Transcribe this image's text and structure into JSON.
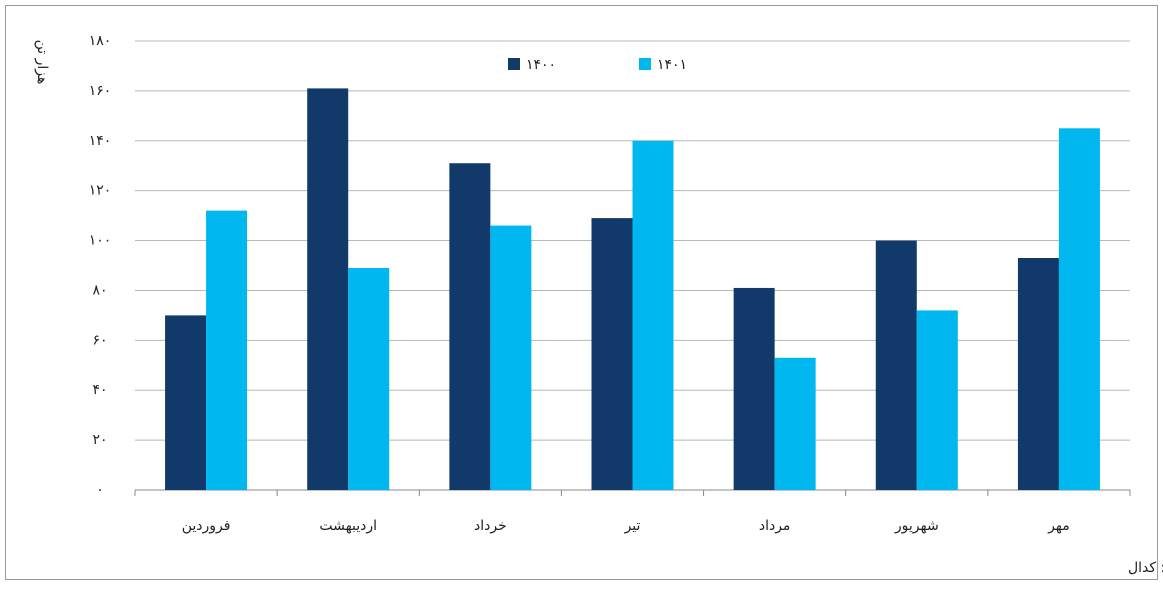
{
  "chart_data": {
    "type": "bar",
    "y_label": "هزار تن",
    "source": "منبع: کدال",
    "categories": [
      "فروردین",
      "اردیبهشت",
      "خرداد",
      "تیر",
      "مرداد",
      "شهریور",
      "مهر"
    ],
    "series": [
      {
        "name": "۱۴۰۰",
        "color": "#113a6b",
        "values": [
          70,
          161,
          131,
          109,
          81,
          100,
          93
        ]
      },
      {
        "name": "۱۴۰۱",
        "color": "#00b8ef",
        "values": [
          112,
          89,
          106,
          140,
          53,
          72,
          145
        ]
      }
    ],
    "ylim": [
      0,
      180
    ],
    "yticks": [
      {
        "value": 0,
        "label": "۰"
      },
      {
        "value": 20,
        "label": "۲۰"
      },
      {
        "value": 40,
        "label": "۴۰"
      },
      {
        "value": 60,
        "label": "۶۰"
      },
      {
        "value": 80,
        "label": "۸۰"
      },
      {
        "value": 100,
        "label": "۱۰۰"
      },
      {
        "value": 120,
        "label": "۱۲۰"
      },
      {
        "value": 140,
        "label": "۱۴۰"
      },
      {
        "value": 160,
        "label": "۱۶۰"
      },
      {
        "value": 180,
        "label": "۱۸۰"
      }
    ],
    "grid": true
  }
}
